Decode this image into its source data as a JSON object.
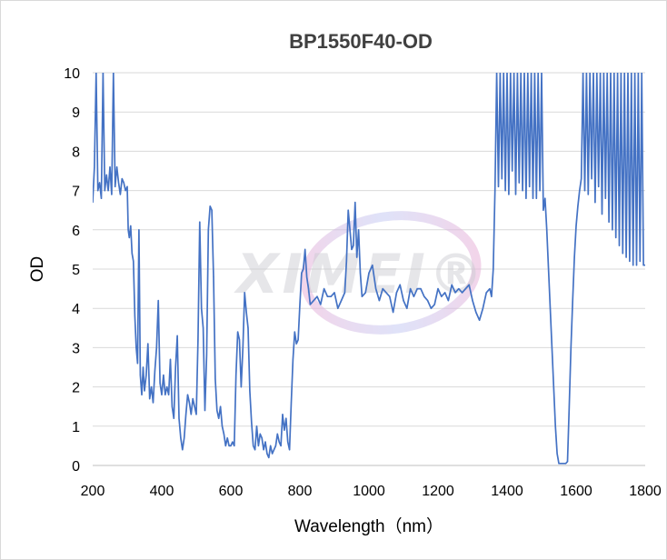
{
  "chart_data": {
    "type": "line",
    "title": "BP1550F40-OD",
    "xlabel": "Wavelength（nm）",
    "ylabel": "OD",
    "xlim": [
      200,
      1800
    ],
    "ylim": [
      0,
      10
    ],
    "x_ticks": [
      "200",
      "400",
      "600",
      "800",
      "1000",
      "1200",
      "1400",
      "1600",
      "1800"
    ],
    "y_ticks": [
      "0",
      "1",
      "2",
      "3",
      "4",
      "5",
      "6",
      "7",
      "8",
      "9",
      "10"
    ],
    "grid": "horizontal",
    "legend": "none",
    "line_color": "#4472C4",
    "watermark": "XIMEI®",
    "series": [
      {
        "x": [
          200,
          205,
          210,
          215,
          220,
          225,
          230,
          235,
          240,
          245,
          250,
          255,
          260,
          265,
          270,
          275,
          280,
          285,
          290,
          295,
          300,
          303,
          306,
          310,
          314,
          318,
          322,
          326,
          330,
          334,
          338,
          342,
          346,
          350,
          355,
          360,
          365,
          370,
          375,
          380,
          385,
          390,
          395,
          400,
          405,
          410,
          415,
          420,
          425,
          430,
          435,
          440,
          445,
          450,
          455,
          460,
          465,
          470,
          475,
          480,
          485,
          490,
          495,
          500,
          505,
          510,
          515,
          520,
          525,
          530,
          535,
          540,
          545,
          550,
          555,
          560,
          565,
          570,
          575,
          580,
          585,
          590,
          595,
          600,
          605,
          610,
          615,
          620,
          625,
          630,
          635,
          640,
          645,
          650,
          655,
          660,
          665,
          670,
          675,
          680,
          685,
          690,
          695,
          700,
          705,
          710,
          715,
          720,
          725,
          730,
          735,
          740,
          745,
          750,
          755,
          760,
          765,
          770,
          775,
          780,
          785,
          790,
          795,
          800,
          805,
          810,
          815,
          820,
          825,
          830,
          840,
          850,
          860,
          870,
          880,
          890,
          900,
          910,
          920,
          930,
          935,
          940,
          945,
          950,
          955,
          960,
          965,
          970,
          975,
          980,
          990,
          1000,
          1010,
          1020,
          1030,
          1040,
          1050,
          1060,
          1070,
          1080,
          1090,
          1100,
          1110,
          1120,
          1130,
          1140,
          1150,
          1160,
          1170,
          1180,
          1190,
          1200,
          1210,
          1220,
          1230,
          1240,
          1250,
          1260,
          1270,
          1280,
          1290,
          1300,
          1310,
          1320,
          1330,
          1340,
          1350,
          1355,
          1360,
          1365,
          1370,
          1375,
          1380,
          1385,
          1390,
          1395,
          1400,
          1405,
          1410,
          1415,
          1420,
          1425,
          1430,
          1435,
          1440,
          1445,
          1450,
          1455,
          1460,
          1465,
          1470,
          1475,
          1480,
          1485,
          1490,
          1495,
          1500,
          1505,
          1510,
          1515,
          1520,
          1525,
          1530,
          1535,
          1540,
          1545,
          1550,
          1555,
          1560,
          1565,
          1570,
          1575,
          1580,
          1585,
          1590,
          1595,
          1600,
          1605,
          1610,
          1615,
          1620,
          1625,
          1630,
          1635,
          1640,
          1645,
          1650,
          1655,
          1660,
          1665,
          1670,
          1675,
          1680,
          1685,
          1690,
          1695,
          1700,
          1705,
          1710,
          1715,
          1720,
          1725,
          1730,
          1735,
          1740,
          1745,
          1750,
          1755,
          1760,
          1765,
          1770,
          1775,
          1780,
          1785,
          1790,
          1795,
          1800
        ],
        "y": [
          6.7,
          7.6,
          10,
          7.0,
          7.2,
          6.8,
          10,
          7.0,
          7.4,
          7.0,
          7.6,
          6.9,
          10,
          7.1,
          7.6,
          7.2,
          6.9,
          7.3,
          7.2,
          7.0,
          7.1,
          6.0,
          5.8,
          6.1,
          5.4,
          5.2,
          3.8,
          3.0,
          2.6,
          6.0,
          2.3,
          1.8,
          2.5,
          1.9,
          2.3,
          3.1,
          1.7,
          2.0,
          1.6,
          2.4,
          3.0,
          4.2,
          2.1,
          1.8,
          2.3,
          1.8,
          2.0,
          1.8,
          2.7,
          1.5,
          1.2,
          2.5,
          3.3,
          1.2,
          0.7,
          0.4,
          0.7,
          1.3,
          1.8,
          1.6,
          1.3,
          1.7,
          1.5,
          1.3,
          3.2,
          6.2,
          4.0,
          3.5,
          1.4,
          2.8,
          6.0,
          6.6,
          6.5,
          4.8,
          2.2,
          1.4,
          1.2,
          1.5,
          1.0,
          0.8,
          0.5,
          0.7,
          0.5,
          0.5,
          0.6,
          0.5,
          2.3,
          3.4,
          3.2,
          2.0,
          3.0,
          4.4,
          3.9,
          3.5,
          1.9,
          1.1,
          0.5,
          0.4,
          1.0,
          0.5,
          0.8,
          0.7,
          0.4,
          0.6,
          0.3,
          0.2,
          0.5,
          0.3,
          0.4,
          0.5,
          0.8,
          0.6,
          0.5,
          1.3,
          0.9,
          1.2,
          0.6,
          0.4,
          1.6,
          2.7,
          3.4,
          3.1,
          3.2,
          4.1,
          4.9,
          5.0,
          5.5,
          4.8,
          4.5,
          4.1,
          4.2,
          4.3,
          4.1,
          4.5,
          4.3,
          4.3,
          4.4,
          4.0,
          4.2,
          4.4,
          5.2,
          6.5,
          6.0,
          5.5,
          5.6,
          6.7,
          5.3,
          6.0,
          4.9,
          4.3,
          4.4,
          4.9,
          5.1,
          4.5,
          4.2,
          4.5,
          4.4,
          4.3,
          3.9,
          4.4,
          4.6,
          4.2,
          4.0,
          4.5,
          4.3,
          4.5,
          4.5,
          4.3,
          4.2,
          4.0,
          4.1,
          4.5,
          4.3,
          4.4,
          4.2,
          4.6,
          4.4,
          4.5,
          4.4,
          4.5,
          4.6,
          4.2,
          3.9,
          3.7,
          4.0,
          4.4,
          4.5,
          4.3,
          5.0,
          7.0,
          10,
          7.1,
          10,
          7.3,
          10,
          7.0,
          10,
          6.9,
          10,
          7.5,
          10,
          6.9,
          10,
          7.2,
          10,
          7.0,
          10,
          6.8,
          10,
          7.1,
          10,
          6.8,
          10,
          6.8,
          10,
          7.0,
          10,
          6.5,
          6.8,
          6.0,
          5.0,
          4.0,
          3.0,
          2.0,
          1.0,
          0.3,
          0.05,
          0.05,
          0.05,
          0.05,
          0.05,
          0.1,
          1.5,
          3.0,
          4.2,
          5.3,
          6.1,
          6.6,
          7.0,
          7.3,
          10,
          7.0,
          10,
          6.9,
          10,
          7.3,
          10,
          6.7,
          10,
          7.1,
          10,
          6.4,
          10,
          6.8,
          10,
          6.2,
          10,
          6.0,
          10,
          5.8,
          10,
          5.6,
          10,
          5.4,
          10,
          5.3,
          10,
          5.2,
          10,
          5.1,
          10,
          5.1,
          10,
          5.2,
          10,
          5.1,
          5.1
        ]
      }
    ]
  }
}
